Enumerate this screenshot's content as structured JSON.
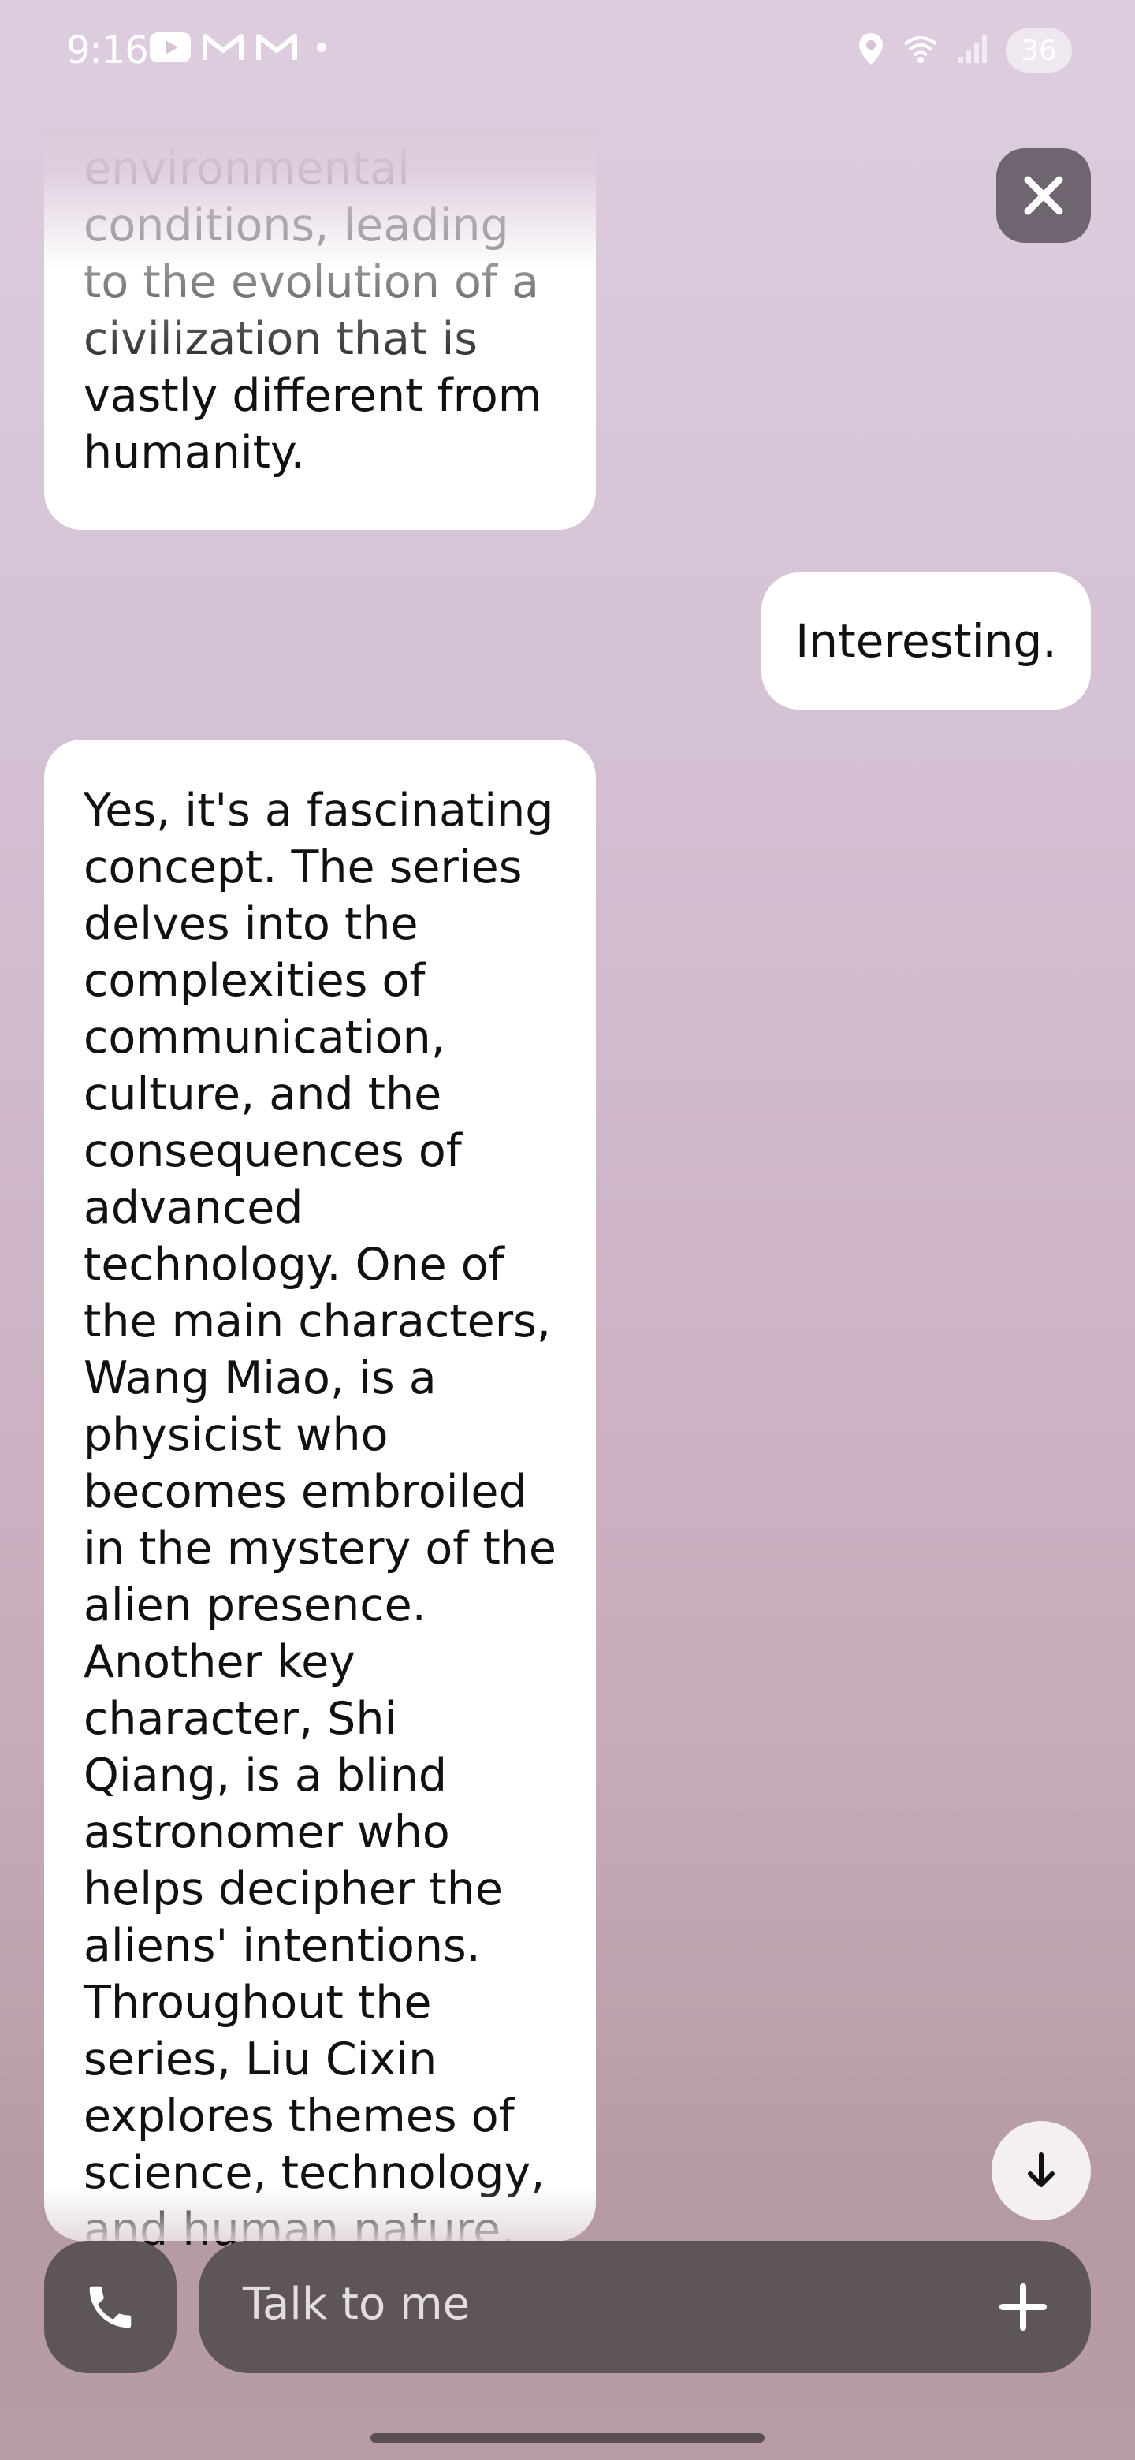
{
  "status_bar": {
    "time": "9:16",
    "left_icons": [
      "youtube-icon",
      "gmail-icon",
      "gmail-icon",
      "dot-icon"
    ],
    "right_icons": [
      "location-icon",
      "wifi-icon",
      "signal-icon"
    ],
    "battery": "36"
  },
  "chat": {
    "messages": [
      {
        "role": "assistant",
        "text": "environmental conditions, leading to the evolution of a civilization that is vastly different from humanity."
      },
      {
        "role": "user",
        "text": "Interesting."
      },
      {
        "role": "assistant",
        "text": "Yes, it's a fascinating concept. The series delves into the complexities of communication, culture, and the consequences of advanced technology. One of the main characters, Wang Miao, is a physicist who becomes embroiled in the mystery of the alien presence. Another key character, Shi Qiang, is a blind astronomer who helps decipher the aliens' intentions. Throughout the series, Liu Cixin explores themes of science, technology, and human nature."
      }
    ]
  },
  "input": {
    "placeholder": "Talk to me"
  },
  "icons": {
    "close": "close-icon",
    "scroll_down": "arrow-down-icon",
    "call": "phone-icon",
    "add": "plus-icon"
  },
  "colors": {
    "bubble": "#ffffff",
    "input_bar": "#5e5558",
    "close_button": "#6f6570"
  }
}
